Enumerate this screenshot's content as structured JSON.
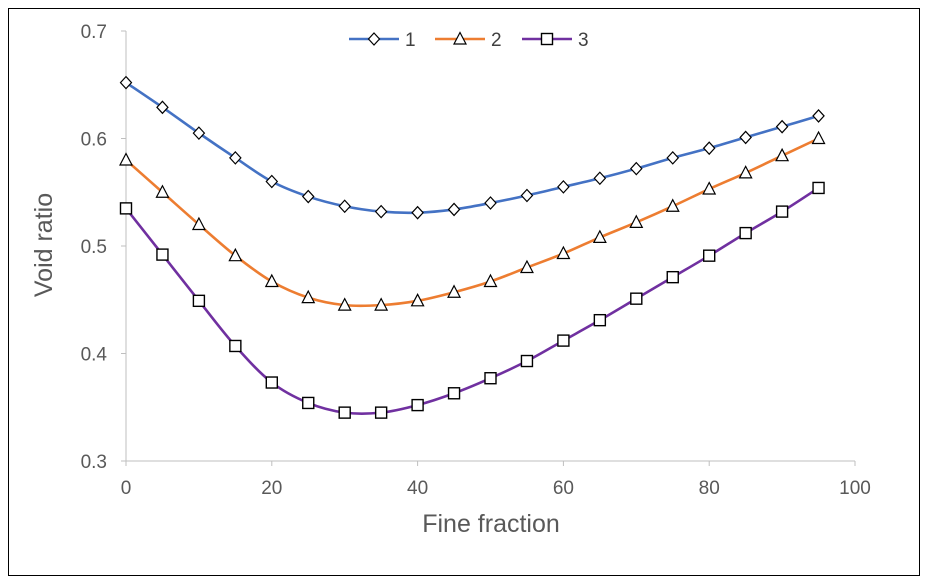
{
  "chart_data": {
    "type": "line",
    "title": "",
    "xlabel": "Fine fraction",
    "ylabel": "Void ratio",
    "xlim": [
      0,
      100
    ],
    "ylim": [
      0.3,
      0.7
    ],
    "x_ticks": [
      "0",
      "20",
      "40",
      "60",
      "80",
      "100"
    ],
    "y_ticks": [
      "0.3",
      "0.4",
      "0.5",
      "0.6",
      "0.7"
    ],
    "x_tick_values": [
      0,
      20,
      40,
      60,
      80,
      100
    ],
    "y_tick_values": [
      0.3,
      0.4,
      0.5,
      0.6,
      0.7
    ],
    "grid": false,
    "legend_position": "top",
    "x": [
      0,
      5,
      10,
      15,
      20,
      25,
      30,
      35,
      40,
      45,
      50,
      55,
      60,
      65,
      70,
      75,
      80,
      85,
      90,
      95
    ],
    "series": [
      {
        "name": "1",
        "color": "#4472C4",
        "marker": "diamond",
        "values": [
          0.652,
          0.629,
          0.605,
          0.582,
          0.56,
          0.546,
          0.537,
          0.532,
          0.531,
          0.534,
          0.54,
          0.547,
          0.555,
          0.563,
          0.572,
          0.582,
          0.591,
          0.601,
          0.611,
          0.621
        ]
      },
      {
        "name": "2",
        "color": "#ED7D31",
        "marker": "triangle",
        "values": [
          0.58,
          0.55,
          0.52,
          0.491,
          0.467,
          0.452,
          0.445,
          0.445,
          0.449,
          0.457,
          0.467,
          0.48,
          0.493,
          0.508,
          0.522,
          0.537,
          0.553,
          0.568,
          0.584,
          0.6
        ]
      },
      {
        "name": "3",
        "color": "#7030A0",
        "marker": "square",
        "values": [
          0.535,
          0.492,
          0.449,
          0.407,
          0.373,
          0.354,
          0.345,
          0.345,
          0.352,
          0.363,
          0.377,
          0.393,
          0.412,
          0.431,
          0.451,
          0.471,
          0.491,
          0.512,
          0.532,
          0.554
        ]
      }
    ]
  }
}
